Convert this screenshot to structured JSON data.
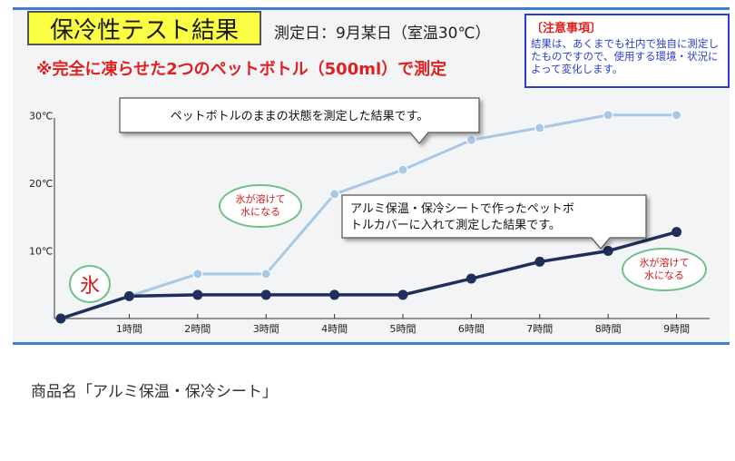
{
  "title": "保冷性テスト結果",
  "measurement_date": "測定日：9月某日（室温30℃）",
  "subtitle": "※完全に凍らせた2つのペットボトル（500ml）で測定",
  "notice": {
    "title": "〔注意事項〕",
    "body": "結果は、あくまでも社内で独自に測定したものですので、使用する環境・状況によって変化します。"
  },
  "chart_data": {
    "type": "line",
    "x_categories": [
      "0",
      "1時間",
      "2時間",
      "3時間",
      "4時間",
      "5時間",
      "6時間",
      "7時間",
      "8時間",
      "9時間"
    ],
    "x_tick_labels": [
      "",
      "1時間",
      "2時間",
      "3時間",
      "4時間",
      "5時間",
      "6時間",
      "7時間",
      "8時間",
      "9時間"
    ],
    "y_ticks": [
      10,
      20,
      30
    ],
    "y_tick_labels": [
      "10℃",
      "20℃",
      "30℃"
    ],
    "ylim": [
      0,
      33
    ],
    "grid": false,
    "series": [
      {
        "color": "#a9c8e6",
        "values": [
          0,
          3.3,
          6.6,
          6.6,
          18.4,
          22,
          26.4,
          28.2,
          30.1,
          30.1
        ]
      },
      {
        "color": "#1f2f5b",
        "values": [
          0,
          3.3,
          3.5,
          3.5,
          3.5,
          3.5,
          5.9,
          8.4,
          10,
          12.8
        ]
      }
    ],
    "annotations": {
      "ice_label": "氷",
      "callout_bottle_lines": [
        "ペットボトルのままの状態を測定した結果です。"
      ],
      "callout_cover_lines": [
        "アルミ保温・保冷シートで作ったペットボ",
        "トルカバーに入れて測定した結果です。"
      ],
      "melt_bubble_lines": [
        "氷が溶けて",
        "水になる"
      ]
    }
  },
  "product_name": "商品名「アルミ保温・保冷シート」"
}
